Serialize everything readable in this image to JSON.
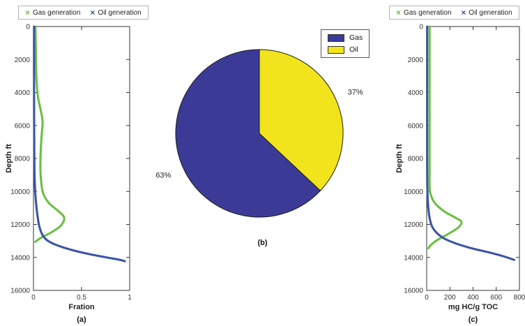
{
  "colors": {
    "gas_green": "#6cbe45",
    "oil_blue": "#3a55a5",
    "pie_gas": "#3b3b97",
    "pie_oil": "#f2e41c",
    "axis": "#333333"
  },
  "legend_line": {
    "marker": "×",
    "gas_label": "Gas generation",
    "oil_label": "Oil generation"
  },
  "chart_data": [
    {
      "type": "line",
      "caption": "(a)",
      "title": "",
      "xlabel": "Fration",
      "ylabel": "Depth ft",
      "xlim": [
        0,
        1
      ],
      "ylim": [
        0,
        16000
      ],
      "y_direction": "reversed (depth increases downward)",
      "xticks": [
        0,
        0.5,
        1
      ],
      "yticks": [
        0,
        2000,
        4000,
        6000,
        8000,
        10000,
        12000,
        14000,
        16000
      ],
      "grid": false,
      "legend_position": "top-outside",
      "series": [
        {
          "name": "Gas generation",
          "color": "#6cbe45",
          "points": [
            [
              0.02,
              0
            ],
            [
              0.025,
              1500
            ],
            [
              0.03,
              3000
            ],
            [
              0.045,
              4200
            ],
            [
              0.08,
              5200
            ],
            [
              0.095,
              5800
            ],
            [
              0.085,
              6600
            ],
            [
              0.075,
              7600
            ],
            [
              0.072,
              8600
            ],
            [
              0.08,
              9400
            ],
            [
              0.1,
              10100
            ],
            [
              0.16,
              10700
            ],
            [
              0.26,
              11200
            ],
            [
              0.32,
              11600
            ],
            [
              0.28,
              12100
            ],
            [
              0.18,
              12500
            ],
            [
              0.08,
              12800
            ],
            [
              0.02,
              13050
            ]
          ]
        },
        {
          "name": "Oil generation",
          "color": "#3a55a5",
          "points": [
            [
              0.006,
              0
            ],
            [
              0.006,
              3000
            ],
            [
              0.007,
              6000
            ],
            [
              0.009,
              8000
            ],
            [
              0.012,
              9200
            ],
            [
              0.02,
              10200
            ],
            [
              0.032,
              11000
            ],
            [
              0.045,
              11600
            ],
            [
              0.06,
              12100
            ],
            [
              0.09,
              12600
            ],
            [
              0.14,
              12950
            ],
            [
              0.24,
              13250
            ],
            [
              0.4,
              13550
            ],
            [
              0.58,
              13800
            ],
            [
              0.76,
              14000
            ],
            [
              0.9,
              14150
            ],
            [
              0.95,
              14230
            ]
          ]
        }
      ]
    },
    {
      "type": "pie",
      "caption": "(b)",
      "labels": [
        "Gas",
        "Oil"
      ],
      "values": [
        63,
        37
      ],
      "pct_labels": [
        "63%",
        "37%"
      ],
      "colors": [
        "#3b3b97",
        "#f2e41c"
      ],
      "edge_color": "#1a1a1a",
      "legend_position": "top-right",
      "start_angle_deg": 90,
      "direction": "counterclockwise"
    },
    {
      "type": "line",
      "caption": "(c)",
      "title": "",
      "xlabel": "mg HC/g TOC",
      "ylabel": "Depth ft",
      "xlim": [
        0,
        800
      ],
      "ylim": [
        0,
        16000
      ],
      "y_direction": "reversed (depth increases downward)",
      "xticks": [
        0,
        200,
        400,
        600,
        800
      ],
      "yticks": [
        0,
        2000,
        4000,
        6000,
        8000,
        10000,
        12000,
        14000,
        16000
      ],
      "grid": false,
      "legend_position": "top-outside",
      "series": [
        {
          "name": "Gas generation",
          "color": "#6cbe45",
          "points": [
            [
              25,
              0
            ],
            [
              25,
              3000
            ],
            [
              25,
              6000
            ],
            [
              25,
              8500
            ],
            [
              25,
              9700
            ],
            [
              35,
              10200
            ],
            [
              70,
              10700
            ],
            [
              150,
              11200
            ],
            [
              250,
              11600
            ],
            [
              300,
              11850
            ],
            [
              270,
              12200
            ],
            [
              180,
              12600
            ],
            [
              90,
              12950
            ],
            [
              35,
              13250
            ],
            [
              15,
              13450
            ]
          ]
        },
        {
          "name": "Oil generation",
          "color": "#3a55a5",
          "points": [
            [
              4,
              0
            ],
            [
              4,
              4000
            ],
            [
              4,
              8000
            ],
            [
              5,
              9500
            ],
            [
              8,
              10300
            ],
            [
              14,
              11000
            ],
            [
              25,
              11600
            ],
            [
              45,
              12100
            ],
            [
              85,
              12500
            ],
            [
              150,
              12850
            ],
            [
              250,
              13150
            ],
            [
              390,
              13450
            ],
            [
              540,
              13700
            ],
            [
              670,
              13950
            ],
            [
              755,
              14150
            ]
          ]
        }
      ]
    }
  ]
}
